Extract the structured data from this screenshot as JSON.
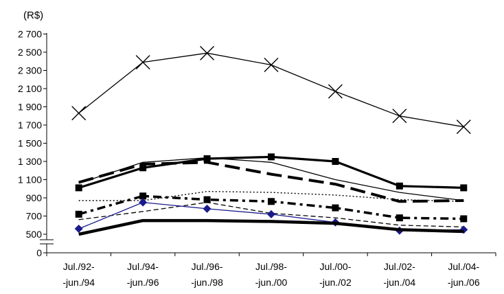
{
  "chart_data": {
    "type": "line",
    "unit_label": "(R$)",
    "categories": [
      [
        "Jul./92-",
        "-jun./94"
      ],
      [
        "Jul./94-",
        "-jun./96"
      ],
      [
        "Jul./96-",
        "-jun./98"
      ],
      [
        "Jul./98-",
        "-jun./00"
      ],
      [
        "Jul./00-",
        "-jun./02"
      ],
      [
        "Jul./02-",
        "-jun./04"
      ],
      [
        "Jul./04-",
        "-jun./06"
      ]
    ],
    "y_ticks": [
      "0",
      "500",
      "700",
      "900",
      "1 100",
      "1 300",
      "1 500",
      "1 700",
      "1 900",
      "2 100",
      "2 300",
      "2 500",
      "2 700"
    ],
    "ylim": [
      0,
      2700
    ],
    "axis_break": true,
    "grid": false,
    "series": [
      {
        "values": [
          1830,
          2390,
          2490,
          2360,
          2070,
          1800,
          1680
        ],
        "color": "#000000",
        "style": "solid-thin",
        "marker": "x"
      },
      {
        "values": [
          1010,
          1230,
          1330,
          1350,
          1300,
          1030,
          1010
        ],
        "color": "#000000",
        "style": "solid-thick",
        "marker": "square"
      },
      {
        "values": [
          1070,
          1270,
          1290,
          1160,
          1050,
          860,
          870
        ],
        "color": "#000000",
        "style": "long-dash-thick",
        "marker": "none"
      },
      {
        "values": [
          1060,
          1290,
          1340,
          1290,
          1100,
          960,
          870
        ],
        "color": "#000000",
        "style": "solid-thin",
        "marker": "none"
      },
      {
        "values": [
          870,
          870,
          970,
          960,
          930,
          880,
          860
        ],
        "color": "#000000",
        "style": "dotted",
        "marker": "none"
      },
      {
        "values": [
          720,
          920,
          880,
          860,
          790,
          680,
          670
        ],
        "color": "#000000",
        "style": "dash-dot-thick",
        "marker": "square"
      },
      {
        "values": [
          660,
          750,
          850,
          730,
          680,
          600,
          580
        ],
        "color": "#000000",
        "style": "dashed-thin",
        "marker": "none"
      },
      {
        "values": [
          560,
          850,
          780,
          720,
          630,
          540,
          550
        ],
        "color": "#1a1a8c",
        "style": "solid-thin",
        "marker": "diamond"
      },
      {
        "values": [
          500,
          650,
          650,
          640,
          620,
          550,
          530
        ],
        "color": "#000000",
        "style": "solid-extra-thick",
        "marker": "none"
      }
    ]
  }
}
